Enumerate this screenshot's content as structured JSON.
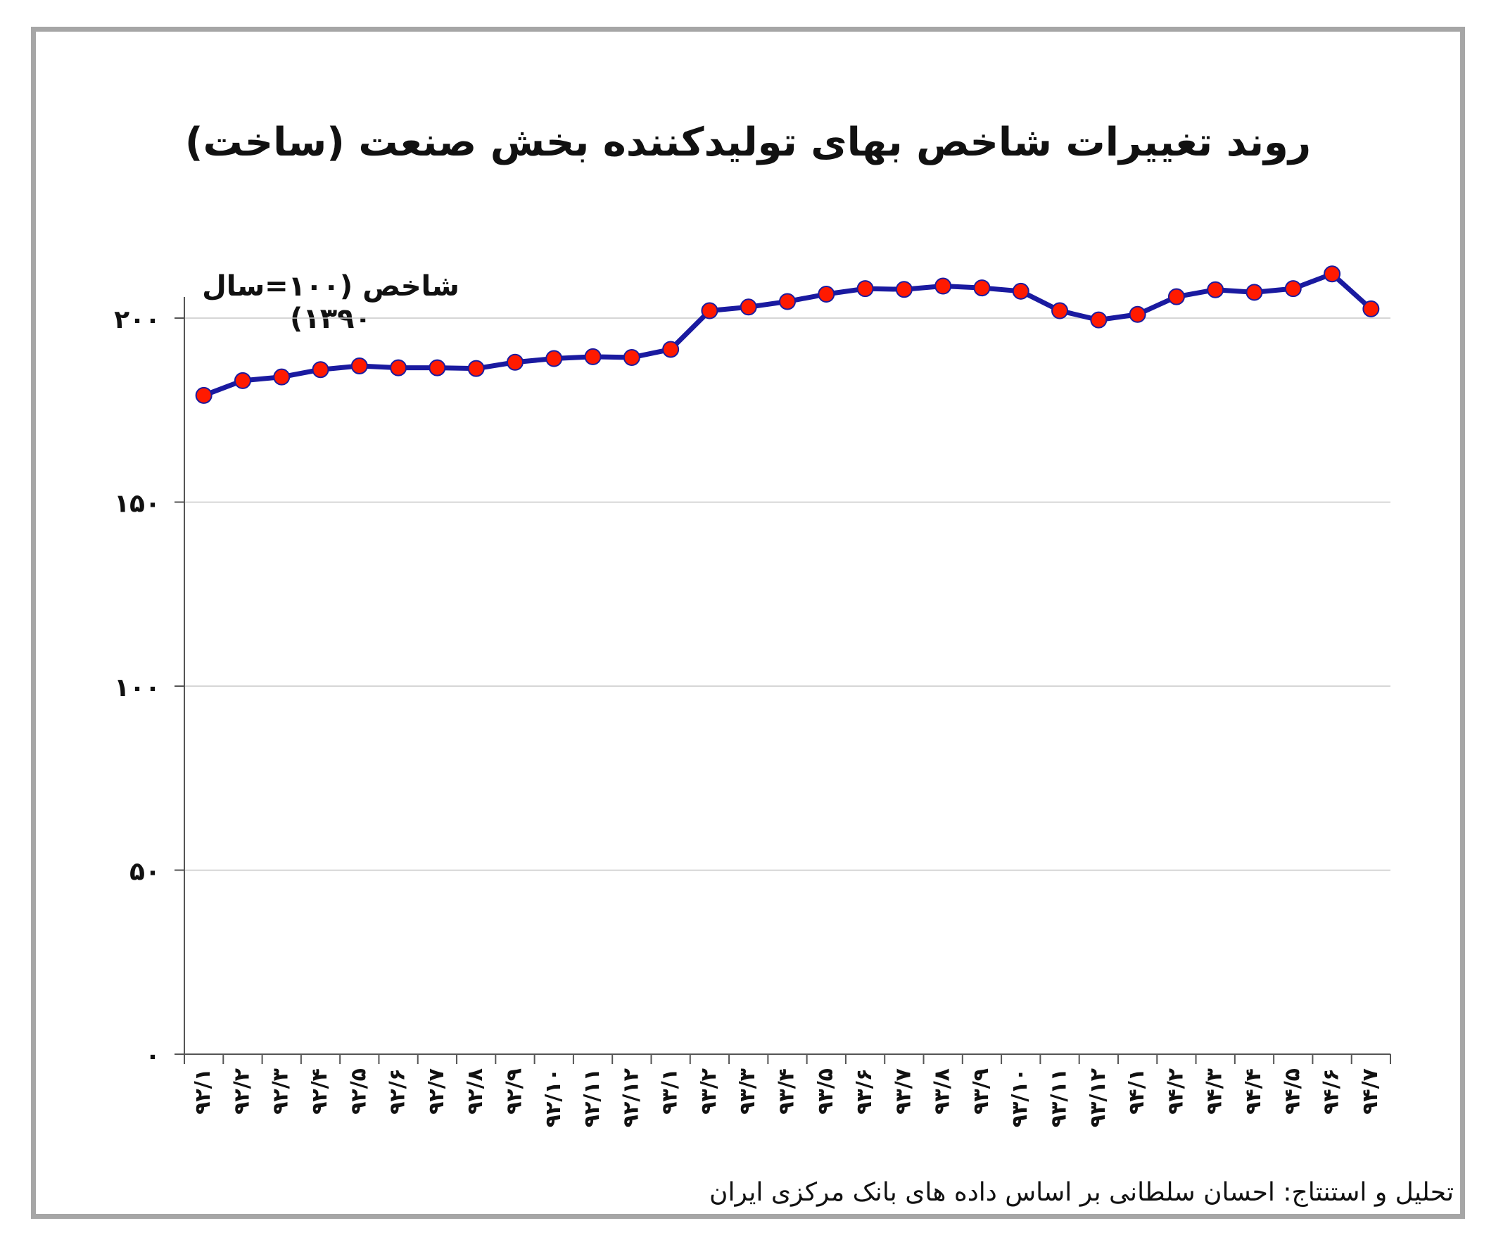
{
  "chart_data": {
    "type": "line",
    "title": "روند تغییرات شاخص بهای تولیدکننده بخش صنعت (ساخت)",
    "ylabel": "شاخص (۱۰۰=سال ۱۳۹۰)",
    "xlabel": "",
    "ylim": [
      0,
      200
    ],
    "yticks": [
      0,
      50,
      100,
      150,
      200
    ],
    "ytick_labels": [
      "۰",
      "۵۰",
      "۱۰۰",
      "۱۵۰",
      "۲۰۰"
    ],
    "grid": true,
    "categories": [
      "۹۲/۱",
      "۹۲/۲",
      "۹۲/۳",
      "۹۲/۴",
      "۹۲/۵",
      "۹۲/۶",
      "۹۲/۷",
      "۹۲/۸",
      "۹۲/۹",
      "۹۲/۱۰",
      "۹۲/۱۱",
      "۹۲/۱۲",
      "۹۳/۱",
      "۹۳/۲",
      "۹۳/۳",
      "۹۳/۴",
      "۹۳/۵",
      "۹۳/۶",
      "۹۳/۷",
      "۹۳/۸",
      "۹۳/۹",
      "۹۳/۱۰",
      "۹۳/۱۱",
      "۹۳/۱۲",
      "۹۴/۱",
      "۹۴/۲",
      "۹۴/۳",
      "۹۴/۴",
      "۹۴/۵",
      "۹۴/۶",
      "۹۴/۷"
    ],
    "series": [
      {
        "values": [
          179,
          183,
          184,
          186,
          187,
          186.5,
          186.5,
          186.3,
          188,
          189,
          189.5,
          189.3,
          191.5,
          202,
          203,
          204.5,
          206.5,
          208,
          207.8,
          208.7,
          208.2,
          207.3,
          202,
          199.5,
          201,
          205.8,
          207.7,
          207,
          208,
          212,
          202.5
        ],
        "line_color": "#1a1aa0",
        "marker_color": "#ff1a00"
      }
    ]
  },
  "source_note": "تحلیل و استنتاج: احسان سلطانی بر اساس داده های بانک مرکزی ایران"
}
